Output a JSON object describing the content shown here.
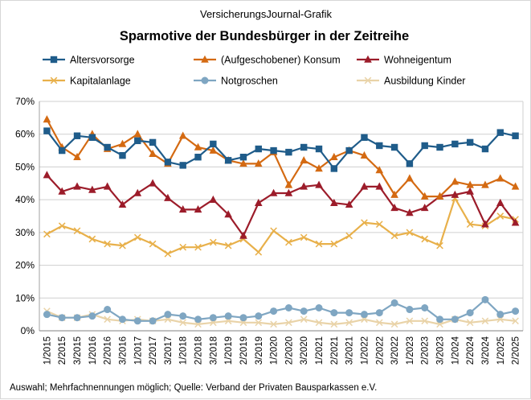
{
  "chart_data": {
    "type": "line",
    "supertitle": "VersicherungsJournal-Grafik",
    "title": "Sparmotive der Bundesbürger  in der Zeitreihe",
    "source_note": "Auswahl; Mehrfachnennungen  möglich; Quelle: Verband der Privaten  Bausparkassen e.V.",
    "ylim": [
      0,
      70
    ],
    "yticks": [
      0,
      10,
      20,
      30,
      40,
      50,
      60,
      70
    ],
    "ytick_labels": [
      "0%",
      "10%",
      "20%",
      "30%",
      "40%",
      "50%",
      "60%",
      "70%"
    ],
    "grid": true,
    "legend_position": "top",
    "categories": [
      "1/2015",
      "2/2015",
      "3/2015",
      "1/2016",
      "2/2016",
      "3/2016",
      "1/2017",
      "2/2017",
      "3/2017",
      "1/2018",
      "2/2018",
      "3/2018",
      "1/2019",
      "2/2019",
      "3/2019",
      "1/2020",
      "2/2020",
      "3/2020",
      "1/2021",
      "2/2021",
      "3/2021",
      "1/2022",
      "2/2022",
      "3/2022",
      "1/2023",
      "2/2023",
      "3/2023",
      "1/2024",
      "2/2024",
      "3/2024",
      "1/2025",
      "2/2025"
    ],
    "series": [
      {
        "name": "Altersvorsorge",
        "color": "#1f5c8a",
        "marker": "square",
        "values": [
          61,
          55,
          59.5,
          59,
          56,
          53.5,
          58,
          57.5,
          51.5,
          50.5,
          53,
          57,
          52,
          53,
          55.5,
          55,
          54.5,
          56,
          55.5,
          49.5,
          55,
          59,
          56.5,
          56,
          51,
          56.5,
          56,
          57,
          57.5,
          55.5,
          60.5,
          59.5
        ]
      },
      {
        "name": "(Aufgeschobener) Konsum",
        "color": "#d46a12",
        "marker": "triangle",
        "values": [
          64.5,
          56,
          53,
          60,
          55.5,
          57,
          60,
          54,
          51,
          59.5,
          56,
          55,
          52,
          51,
          51,
          54.5,
          44.5,
          52,
          49.5,
          53,
          55,
          53.5,
          49,
          41.5,
          46.5,
          41,
          41,
          45.5,
          44.5,
          44.5,
          46.5,
          44
        ]
      },
      {
        "name": "Wohneigentum",
        "color": "#9c1c2a",
        "marker": "triangle",
        "values": [
          47.5,
          42.5,
          44,
          43,
          44,
          38.5,
          42,
          45,
          40.5,
          37,
          37,
          40,
          35.5,
          29,
          39,
          42,
          42,
          44,
          44.5,
          39,
          38.5,
          44,
          44,
          37.5,
          36,
          37.5,
          41,
          41.5,
          42.5,
          32.5,
          39,
          33
        ]
      },
      {
        "name": "Kapitalanlage",
        "color": "#e8b04a",
        "marker": "x",
        "values": [
          29.5,
          32,
          30.5,
          28,
          26.5,
          26,
          28.5,
          26.5,
          23.5,
          25.5,
          25.5,
          27,
          26,
          28,
          24,
          30.5,
          27,
          28.5,
          26.5,
          26.5,
          29,
          33,
          32.5,
          29,
          30,
          28,
          26,
          40.5,
          32.5,
          32,
          35,
          34
        ]
      },
      {
        "name": "Notgroschen",
        "color": "#7fa6c2",
        "marker": "circle",
        "values": [
          5,
          4,
          4,
          4.5,
          6.5,
          3.5,
          3,
          3,
          5,
          4.5,
          3.5,
          4,
          4.5,
          4,
          4.5,
          6,
          7,
          6,
          7,
          5.5,
          5.5,
          5,
          5.5,
          8.5,
          6.5,
          7,
          3.5,
          3.5,
          5.5,
          9.5,
          5,
          6
        ]
      },
      {
        "name": "Ausbildung Kinder",
        "color": "#e9d3a8",
        "marker": "x",
        "values": [
          6,
          4,
          4,
          5,
          3.5,
          3,
          3.5,
          3,
          3.5,
          2.5,
          2,
          2.5,
          3,
          2.5,
          2.5,
          2,
          2.5,
          3.5,
          2.5,
          2,
          2.5,
          3.5,
          2.5,
          2,
          3,
          3,
          2,
          3.5,
          2.5,
          3,
          3.5,
          3
        ]
      }
    ]
  }
}
